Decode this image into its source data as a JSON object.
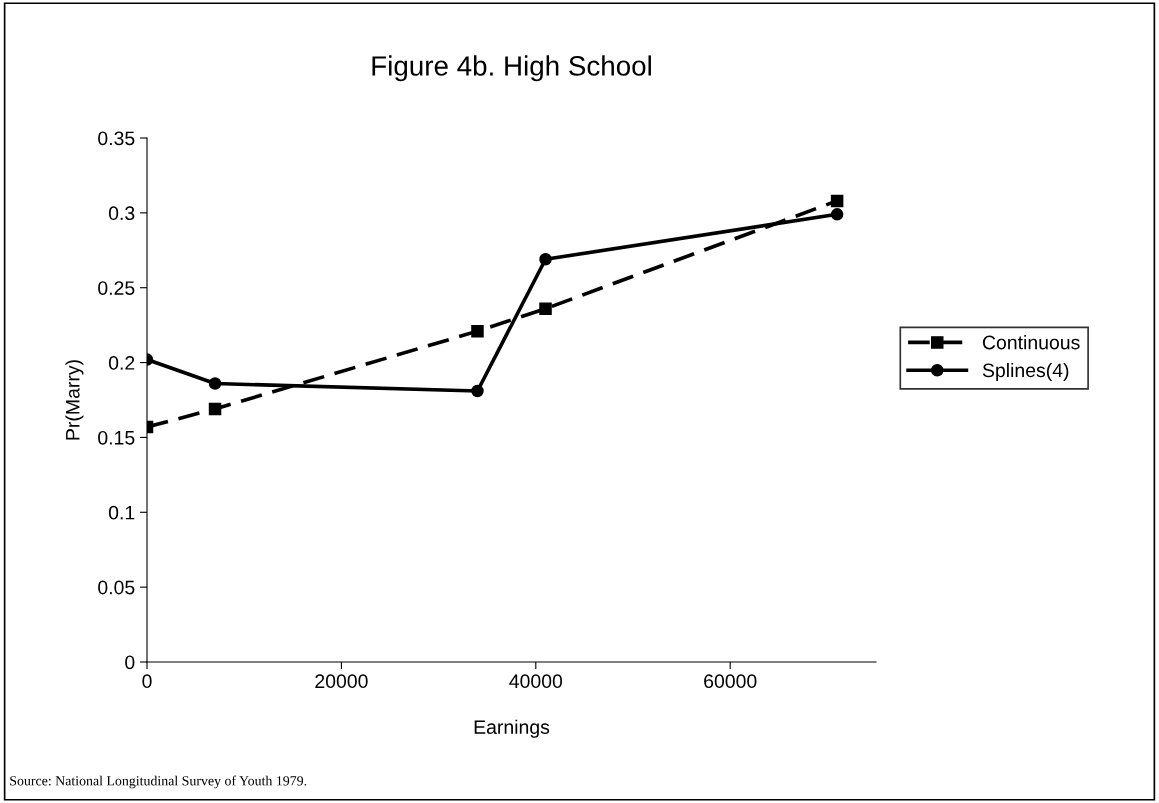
{
  "chart_data": {
    "type": "line",
    "title": "Figure 4b. High School",
    "xlabel": "Earnings",
    "ylabel": "Pr(Marry)",
    "x": [
      0,
      7000,
      34000,
      41000,
      71000
    ],
    "series": [
      {
        "name": "Continuous",
        "color": "#000000",
        "values": [
          0.157,
          0.169,
          0.221,
          0.236,
          0.308
        ],
        "marker": "square",
        "line_style": "dashed"
      },
      {
        "name": "Splines(4)",
        "color": "#000000",
        "values": [
          0.202,
          0.186,
          0.181,
          0.269,
          0.299
        ],
        "marker": "circle",
        "line_style": "solid"
      }
    ],
    "xlim": [
      0,
      75000
    ],
    "xticks": [
      0,
      20000,
      40000,
      60000
    ],
    "ylim": [
      0,
      0.35
    ],
    "yticks": [
      0,
      0.05,
      0.1,
      0.15,
      0.2,
      0.25,
      0.3,
      0.35
    ],
    "grid": false,
    "legend": "right",
    "annotations": [
      "Source: National Longitudinal Survey of Youth 1979."
    ]
  }
}
